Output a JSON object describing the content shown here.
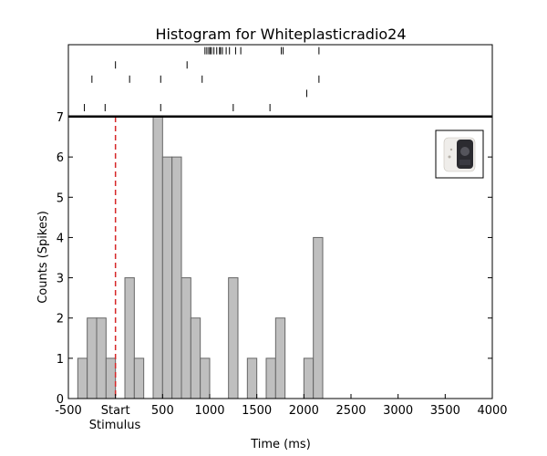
{
  "chart_data": {
    "type": "bar",
    "title": "Histogram for Whiteplasticradio24",
    "xlabel": "Time (ms)",
    "ylabel": "Counts (Spikes)",
    "xlim": [
      -500,
      4000
    ],
    "ylim": [
      0,
      7
    ],
    "x_ticks": [
      -500,
      0,
      500,
      1000,
      1500,
      2000,
      2500,
      3000,
      3500,
      4000
    ],
    "x_tick_labels": [
      "-500",
      "Start",
      "500",
      "1000",
      "1500",
      "2000",
      "2500",
      "3000",
      "3500",
      "4000"
    ],
    "x_tick_sublabel": "Stimulus",
    "y_ticks": [
      0,
      1,
      2,
      3,
      4,
      5,
      6,
      7
    ],
    "y_tick_labels": [
      "0",
      "1",
      "2",
      "3",
      "4",
      "5",
      "6",
      "7"
    ],
    "stimulus_start": 0,
    "bin_width": 100,
    "bin_starts": [
      -400,
      -300,
      -200,
      -100,
      0,
      100,
      200,
      300,
      400,
      500,
      600,
      700,
      800,
      900,
      1000,
      1100,
      1200,
      1300,
      1400,
      1500,
      1600,
      1700,
      1800,
      1900,
      2000,
      2100
    ],
    "values": [
      1,
      2,
      2,
      1,
      0,
      3,
      1,
      0,
      7,
      6,
      6,
      3,
      2,
      1,
      0,
      0,
      3,
      0,
      1,
      0,
      1,
      2,
      0,
      0,
      1,
      4
    ],
    "raster_trials": [
      [
        -330,
        -110,
        480,
        1250,
        1640
      ],
      [
        2030
      ],
      [
        -250,
        150,
        480,
        920,
        2160
      ],
      [
        0,
        760
      ],
      [
        950,
        970,
        990,
        1005,
        1020,
        1045,
        1075,
        1105,
        1115,
        1135,
        1175,
        1210,
        1275,
        1330,
        1760,
        1780,
        2160
      ]
    ],
    "bar_color": "#bfbfbf",
    "edge_color": "#666666",
    "stimulus_line_color": "#d62728",
    "grid": false
  },
  "inset_image": "white-plastic-radio-photo"
}
